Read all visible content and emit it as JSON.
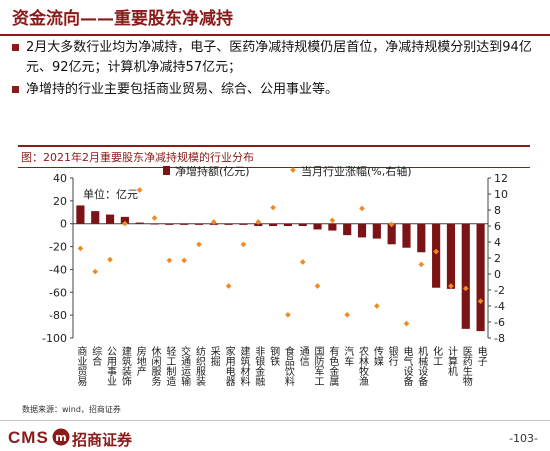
{
  "header": {
    "title": "资金流向——重要股东净减持"
  },
  "bullets": [
    "2月大多数行业均为净减持，电子、医药净减持规模仍居首位，净减持规模分别达到94亿元、92亿元；计算机净减持57亿元；",
    "净增持的行业主要包括商业贸易、综合、公用事业等。"
  ],
  "figure": {
    "caption": "图：2021年2月重要股东净减持规模的行业分布"
  },
  "source": "数据来源：wind，招商证券",
  "footer": {
    "brand": "CMS",
    "brand_cn": "招商证券",
    "page": "-103-"
  },
  "colors": {
    "bar": "#7B1416",
    "dot": "#F08A24",
    "accent": "#8B1A1A"
  },
  "chart_data": {
    "type": "bar",
    "unit_label": "单位：亿元",
    "categories": [
      "商业贸易",
      "综合",
      "公用事业",
      "建筑装饰",
      "房地产",
      "休闲服务",
      "轻工制造",
      "交通运输",
      "纺织服装",
      "采掘",
      "家用电器",
      "建筑材料",
      "非银金融",
      "钢铁",
      "食品饮料",
      "通信",
      "国防军工",
      "有色金属",
      "汽车",
      "农林牧渔",
      "传媒",
      "银行",
      "电气设备",
      "机械设备",
      "化工",
      "计算机",
      "医药生物",
      "电子"
    ],
    "series": [
      {
        "name": "净增持额(亿元)",
        "type": "bar",
        "axis": "left",
        "values": [
          16,
          11,
          8,
          6,
          1,
          0,
          -1,
          -1,
          -1,
          -1,
          -1,
          -1,
          -2,
          -2,
          -2,
          -2,
          -5,
          -6,
          -10,
          -12,
          -13,
          -18,
          -21,
          -25,
          -56,
          -57,
          -92,
          -94
        ]
      },
      {
        "name": "当月行业涨幅(%,右轴)",
        "type": "scatter",
        "axis": "right",
        "values": [
          3.2,
          0.3,
          1.8,
          6.3,
          10.5,
          7.0,
          1.7,
          1.7,
          3.7,
          6.5,
          -1.5,
          3.7,
          6.5,
          8.3,
          -5.1,
          1.5,
          -1.5,
          6.7,
          -5.1,
          8.2,
          -4.0,
          6.2,
          -6.2,
          1.2,
          2.8,
          -1.5,
          -1.8,
          -3.4
        ]
      }
    ],
    "left_axis": {
      "min": -100,
      "max": 40,
      "ticks": [
        40,
        20,
        0,
        -20,
        -40,
        -60,
        -80,
        -100
      ]
    },
    "right_axis": {
      "min": -8,
      "max": 12,
      "ticks": [
        12,
        10,
        8,
        6,
        4,
        2,
        0,
        -2,
        -4,
        -6,
        -8
      ]
    },
    "legend_position": "top"
  }
}
